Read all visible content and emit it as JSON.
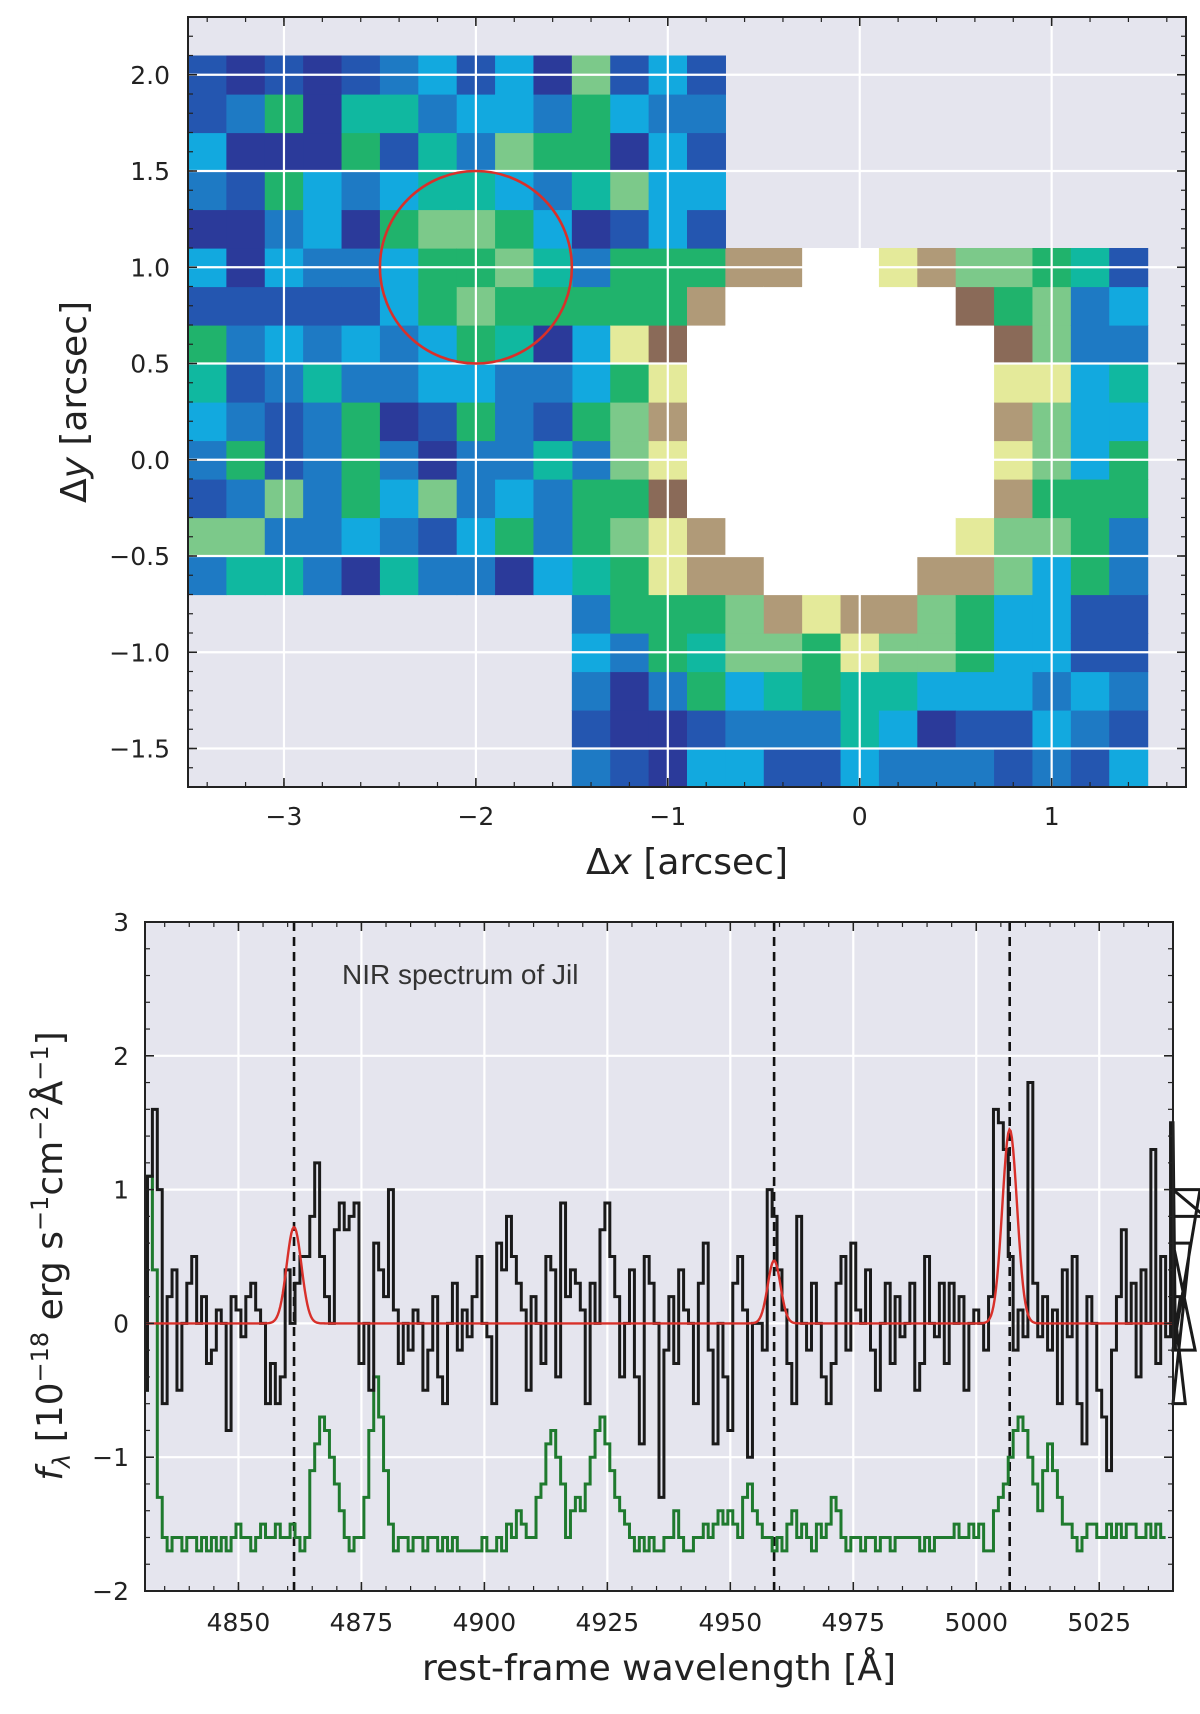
{
  "chart_data": [
    {
      "type": "heatmap",
      "xlabel_pre": "Δ",
      "xlabel_var": "x",
      "xlabel_post": " [arcsec]",
      "ylabel_pre": "Δ",
      "ylabel_var": "y",
      "ylabel_post": " [arcsec]",
      "xlim": [
        -3.5,
        1.7
      ],
      "ylim": [
        -1.7,
        2.3
      ],
      "xticks": [
        -3,
        -2,
        -1,
        0,
        1
      ],
      "xtick_labels": [
        "−3",
        "−2",
        "−1",
        "0",
        "1"
      ],
      "yticks": [
        -1.5,
        -1.0,
        -0.5,
        0.0,
        0.5,
        1.0,
        1.5,
        2.0
      ],
      "ytick_labels": [
        "−1.5",
        "−1.0",
        "−0.5",
        "0.0",
        "0.5",
        "1.0",
        "1.5",
        "2.0"
      ],
      "pixel_size_arcsec": 0.2,
      "left_region": {
        "x_range": [
          -3.5,
          -0.7
        ],
        "y_range": [
          -0.7,
          2.1
        ]
      },
      "right_region": {
        "x_range": [
          -1.5,
          1.5
        ],
        "y_range": [
          -1.7,
          1.1
        ]
      },
      "masked_center": {
        "x": -0.1,
        "y": 0.15,
        "radius": 0.88
      },
      "aperture": {
        "x": -2.0,
        "y": 1.0,
        "radius": 0.5,
        "color": "#d8302a"
      },
      "colormap": [
        "#2b3a9a",
        "#2456b0",
        "#1e7ac4",
        "#12a9df",
        "#10b8a0",
        "#20b36c",
        "#7cc98a",
        "#e4ea9a",
        "#b09a78",
        "#8a6a58",
        "#ffffff"
      ]
    },
    {
      "type": "line",
      "title": "NIR spectrum of Jil",
      "xlabel": "rest-frame wavelength [Å]",
      "ylabel_text": "f",
      "ylabel_sub": "λ",
      "ylabel_units": " [10",
      "ylabel_exp1": "−18",
      "ylabel_mid1": " erg s",
      "ylabel_exp2": "−1",
      "ylabel_mid2": "cm",
      "ylabel_exp3": "−2",
      "ylabel_mid3": "Å",
      "ylabel_exp4": "−1",
      "ylabel_end": "]",
      "xlim": [
        4831,
        5040
      ],
      "ylim": [
        -2,
        3
      ],
      "xticks": [
        4850,
        4875,
        4900,
        4925,
        4950,
        4975,
        5000,
        5025
      ],
      "xtick_labels": [
        "4850",
        "4875",
        "4900",
        "4925",
        "4950",
        "4975",
        "5000",
        "5025"
      ],
      "yticks": [
        -2,
        -1,
        0,
        1,
        2,
        3
      ],
      "ytick_labels": [
        "−2",
        "−1",
        "0",
        "1",
        "2",
        "3"
      ],
      "line_markers": [
        4861.3,
        4958.9,
        5006.8
      ],
      "gaussian_fit": {
        "color": "#d8302a",
        "lines": [
          {
            "center": 4861.3,
            "amplitude": 0.72,
            "sigma": 1.5
          },
          {
            "center": 4958.9,
            "amplitude": 0.47,
            "sigma": 1.3
          },
          {
            "center": 5006.8,
            "amplitude": 1.45,
            "sigma": 1.5
          }
        ]
      },
      "series": [
        {
          "name": "flux",
          "color": "#1a1a1a",
          "x_start": 4831,
          "step": 1,
          "values": [
            -0.5,
            1.1,
            1.6,
            1.0,
            -0.6,
            0.2,
            0.4,
            -0.5,
            0.0,
            0.3,
            0.5,
            0.0,
            0.2,
            -0.3,
            -0.2,
            0.1,
            0.0,
            -0.8,
            0.2,
            0.1,
            -0.1,
            0.2,
            0.3,
            0.1,
            0.0,
            -0.6,
            -0.3,
            -0.6,
            -0.4,
            0.4,
            0.0,
            0.3,
            0.5,
            0.5,
            0.8,
            1.2,
            0.5,
            0.2,
            0.0,
            0.7,
            0.9,
            0.7,
            0.8,
            0.9,
            -0.3,
            0.0,
            -0.5,
            0.6,
            0.4,
            0.2,
            1.0,
            0.1,
            -0.3,
            0.0,
            -0.2,
            0.1,
            0.0,
            -0.5,
            -0.2,
            0.2,
            -0.4,
            -0.6,
            0.0,
            0.3,
            -0.2,
            0.1,
            -0.1,
            0.2,
            0.5,
            0.0,
            -0.1,
            -0.6,
            0.6,
            0.4,
            0.8,
            0.5,
            0.3,
            0.1,
            -0.5,
            0.2,
            0.0,
            -0.3,
            0.5,
            0.4,
            -0.4,
            0.9,
            0.2,
            0.4,
            0.3,
            0.1,
            -0.6,
            0.3,
            0.0,
            0.7,
            0.9,
            0.5,
            0.2,
            -0.4,
            0.0,
            0.4,
            -0.4,
            -0.9,
            0.5,
            0.3,
            0.0,
            -1.3,
            -0.2,
            0.2,
            -0.3,
            0.4,
            0.1,
            0.0,
            -0.6,
            0.3,
            0.6,
            -0.2,
            -0.9,
            0.0,
            -0.4,
            -0.8,
            0.3,
            0.5,
            0.1,
            -1.0,
            0.0,
            0.0,
            -0.2,
            1.0,
            0.8,
            0.4,
            0.1,
            -0.3,
            -0.6,
            0.8,
            0.0,
            -0.2,
            0.3,
            0.0,
            -0.4,
            -0.6,
            -0.3,
            0.3,
            0.5,
            -0.2,
            0.6,
            0.1,
            0.0,
            0.4,
            -0.2,
            -0.5,
            0.0,
            0.3,
            -0.3,
            0.2,
            -0.1,
            0.0,
            0.3,
            -0.5,
            -0.3,
            0.5,
            0.0,
            -0.1,
            0.3,
            -0.3,
            0.3,
            0.0,
            0.2,
            -0.5,
            0.0,
            0.1,
            0.0,
            -0.2,
            0.2,
            1.6,
            1.5,
            1.3,
            0.5,
            -0.2,
            0.1,
            -0.1,
            1.8,
            0.3,
            -0.1,
            0.2,
            -0.2,
            0.1,
            -0.6,
            0.4,
            -0.1,
            0.5,
            -0.6,
            -0.9,
            0.2,
            0.0,
            -0.5,
            -0.7,
            -1.1,
            -0.2,
            0.2,
            0.7,
            0.0,
            0.3,
            -0.4,
            0.4,
            0.0,
            1.3,
            -0.3,
            0.5,
            -0.1,
            1.5,
            -0.2,
            0.2,
            -0.6,
            0.6,
            -0.2,
            1.0,
            0.8
          ]
        },
        {
          "name": "error",
          "color": "#1f7a2e",
          "x_start": 4831,
          "step": 1,
          "values": [
            -0.5,
            1.1,
            0.4,
            -1.3,
            -1.6,
            -1.7,
            -1.6,
            -1.6,
            -1.7,
            -1.6,
            -1.6,
            -1.7,
            -1.6,
            -1.7,
            -1.6,
            -1.7,
            -1.6,
            -1.7,
            -1.6,
            -1.5,
            -1.6,
            -1.6,
            -1.7,
            -1.6,
            -1.5,
            -1.6,
            -1.6,
            -1.5,
            -1.6,
            -1.6,
            -1.5,
            -1.6,
            -1.7,
            -1.6,
            -1.1,
            -0.9,
            -0.7,
            -0.8,
            -1.0,
            -1.2,
            -1.4,
            -1.6,
            -1.7,
            -1.6,
            -1.6,
            -1.3,
            -0.8,
            -0.4,
            -0.7,
            -1.1,
            -1.5,
            -1.7,
            -1.6,
            -1.6,
            -1.7,
            -1.6,
            -1.6,
            -1.7,
            -1.6,
            -1.6,
            -1.7,
            -1.6,
            -1.7,
            -1.6,
            -1.7,
            -1.7,
            -1.7,
            -1.7,
            -1.7,
            -1.6,
            -1.7,
            -1.7,
            -1.6,
            -1.7,
            -1.5,
            -1.6,
            -1.4,
            -1.5,
            -1.6,
            -1.6,
            -1.3,
            -1.2,
            -0.9,
            -0.8,
            -1.0,
            -1.2,
            -1.6,
            -1.4,
            -1.3,
            -1.4,
            -1.2,
            -1.0,
            -0.8,
            -0.7,
            -0.9,
            -1.1,
            -1.3,
            -1.4,
            -1.5,
            -1.6,
            -1.7,
            -1.6,
            -1.7,
            -1.6,
            -1.7,
            -1.7,
            -1.6,
            -1.6,
            -1.4,
            -1.6,
            -1.7,
            -1.7,
            -1.6,
            -1.6,
            -1.5,
            -1.6,
            -1.5,
            -1.4,
            -1.5,
            -1.4,
            -1.5,
            -1.6,
            -1.3,
            -1.2,
            -1.4,
            -1.5,
            -1.6,
            -1.6,
            -1.7,
            -1.6,
            -1.7,
            -1.5,
            -1.4,
            -1.6,
            -1.5,
            -1.6,
            -1.7,
            -1.5,
            -1.6,
            -1.5,
            -1.3,
            -1.4,
            -1.6,
            -1.7,
            -1.6,
            -1.6,
            -1.7,
            -1.6,
            -1.6,
            -1.7,
            -1.6,
            -1.6,
            -1.7,
            -1.6,
            -1.6,
            -1.6,
            -1.6,
            -1.6,
            -1.7,
            -1.6,
            -1.7,
            -1.6,
            -1.6,
            -1.6,
            -1.6,
            -1.5,
            -1.6,
            -1.6,
            -1.5,
            -1.6,
            -1.5,
            -1.7,
            -1.7,
            -1.4,
            -1.3,
            -1.2,
            -1.0,
            -0.8,
            -0.7,
            -0.8,
            -1.0,
            -1.2,
            -1.4,
            -1.1,
            -0.9,
            -1.1,
            -1.3,
            -1.5,
            -1.5,
            -1.6,
            -1.7,
            -1.6,
            -1.5,
            -1.5,
            -1.6,
            -1.6,
            -1.5,
            -1.6,
            -1.5,
            -1.6,
            -1.5,
            -1.5,
            -1.6,
            -1.6,
            -1.5,
            -1.6,
            -1.5,
            -1.6
          ]
        }
      ]
    }
  ]
}
